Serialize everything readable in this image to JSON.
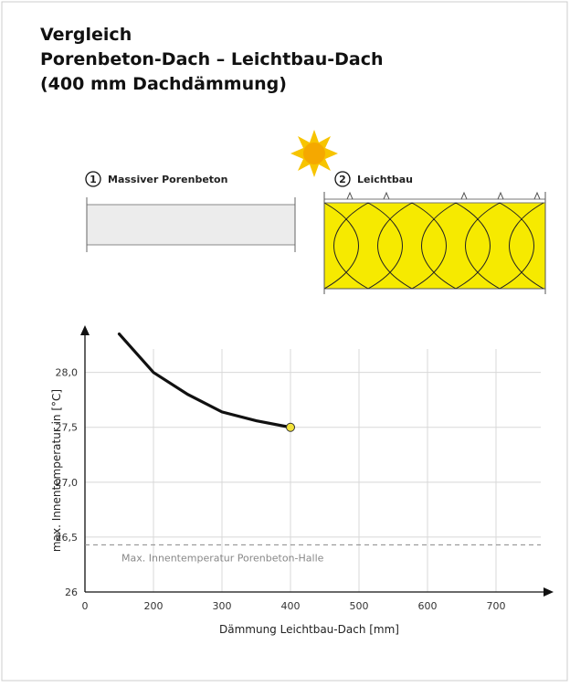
{
  "chart_data": {
    "type": "line",
    "title_lines": [
      "Vergleich",
      "Porenbeton-Dach – Leichtbau-Dach",
      "(400 mm Dachdämmung)"
    ],
    "diagram_labels": [
      {
        "number": "1",
        "text": "Massiver Porenbeton"
      },
      {
        "number": "2",
        "text": "Leichtbau"
      }
    ],
    "x": [
      150,
      200,
      250,
      300,
      350,
      400
    ],
    "values": [
      28.35,
      28.0,
      27.8,
      27.64,
      27.56,
      27.5
    ],
    "color": "#111111",
    "point_color": "#f3e33a",
    "xlim": [
      100,
      776
    ],
    "ylim": [
      26,
      28.38
    ],
    "x_origin_label": "0",
    "xticks": [
      200,
      300,
      400,
      500,
      600,
      700
    ],
    "yticks": [
      26,
      {
        "value": 26.5,
        "label": "26,5"
      },
      {
        "value": 27,
        "label": "27,0"
      },
      {
        "value": 27.5,
        "label": "27,5"
      },
      {
        "value": 28,
        "label": "28,0"
      }
    ],
    "reference": {
      "value": 26.43,
      "label": "Max. Innentemperatur Porenbeton-Halle",
      "color": "#888888"
    },
    "xlabel": "Dämmung Leichtbau-Dach [mm]",
    "ylabel": "max. Innentemperatur in [°C]",
    "grid": true
  }
}
